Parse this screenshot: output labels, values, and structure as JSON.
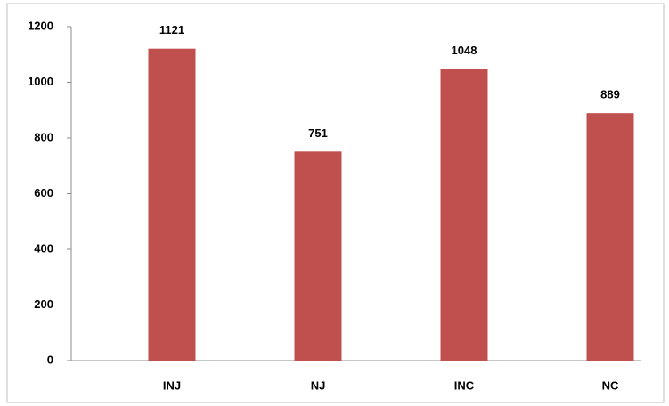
{
  "chart_data": {
    "type": "bar",
    "categories": [
      "INJ",
      "NJ",
      "INC",
      "NC"
    ],
    "values": [
      1121,
      751,
      1048,
      889
    ],
    "color": "#c0504d",
    "ylim": [
      0,
      1200
    ],
    "yticks": [
      0,
      200,
      400,
      600,
      800,
      1000,
      1200
    ],
    "grid": false
  }
}
